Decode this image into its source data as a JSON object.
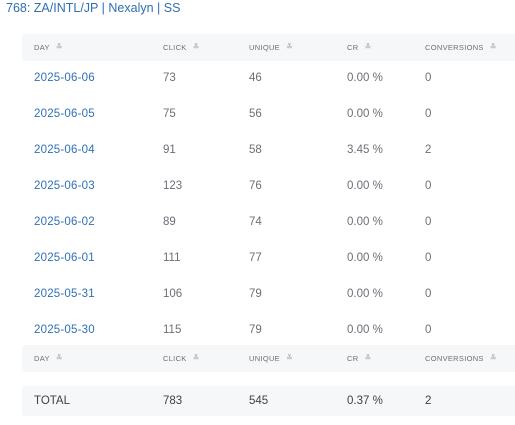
{
  "title": {
    "id_part": "768: ZA/INTL/JP",
    "sep1": "|",
    "name": "Nexalyn",
    "sep2": "|",
    "suffix": "SS"
  },
  "columns": {
    "day": "DAY",
    "click": "CLICK",
    "unique": "UNIQUE",
    "cr": "CR",
    "conversions": "CONVERSIONS",
    "sort_icon": "chevrons-down-icon",
    "sort_glyph": "≚"
  },
  "rows": [
    {
      "day": "2025-06-06",
      "click": "73",
      "unique": "46",
      "cr": "0.00 %",
      "conversions": "0"
    },
    {
      "day": "2025-06-05",
      "click": "75",
      "unique": "56",
      "cr": "0.00 %",
      "conversions": "0"
    },
    {
      "day": "2025-06-04",
      "click": "91",
      "unique": "58",
      "cr": "3.45 %",
      "conversions": "2"
    },
    {
      "day": "2025-06-03",
      "click": "123",
      "unique": "76",
      "cr": "0.00 %",
      "conversions": "0"
    },
    {
      "day": "2025-06-02",
      "click": "89",
      "unique": "74",
      "cr": "0.00 %",
      "conversions": "0"
    },
    {
      "day": "2025-06-01",
      "click": "111",
      "unique": "77",
      "cr": "0.00 %",
      "conversions": "0"
    },
    {
      "day": "2025-05-31",
      "click": "106",
      "unique": "79",
      "cr": "0.00 %",
      "conversions": "0"
    },
    {
      "day": "2025-05-30",
      "click": "115",
      "unique": "79",
      "cr": "0.00 %",
      "conversions": "0"
    }
  ],
  "total": {
    "label": "TOTAL",
    "click": "783",
    "unique": "545",
    "cr": "0.37 %",
    "conversions": "2"
  },
  "colors": {
    "link": "#2f6fb6",
    "header_bg": "#f6f7f9",
    "text": "#6b6f76"
  }
}
